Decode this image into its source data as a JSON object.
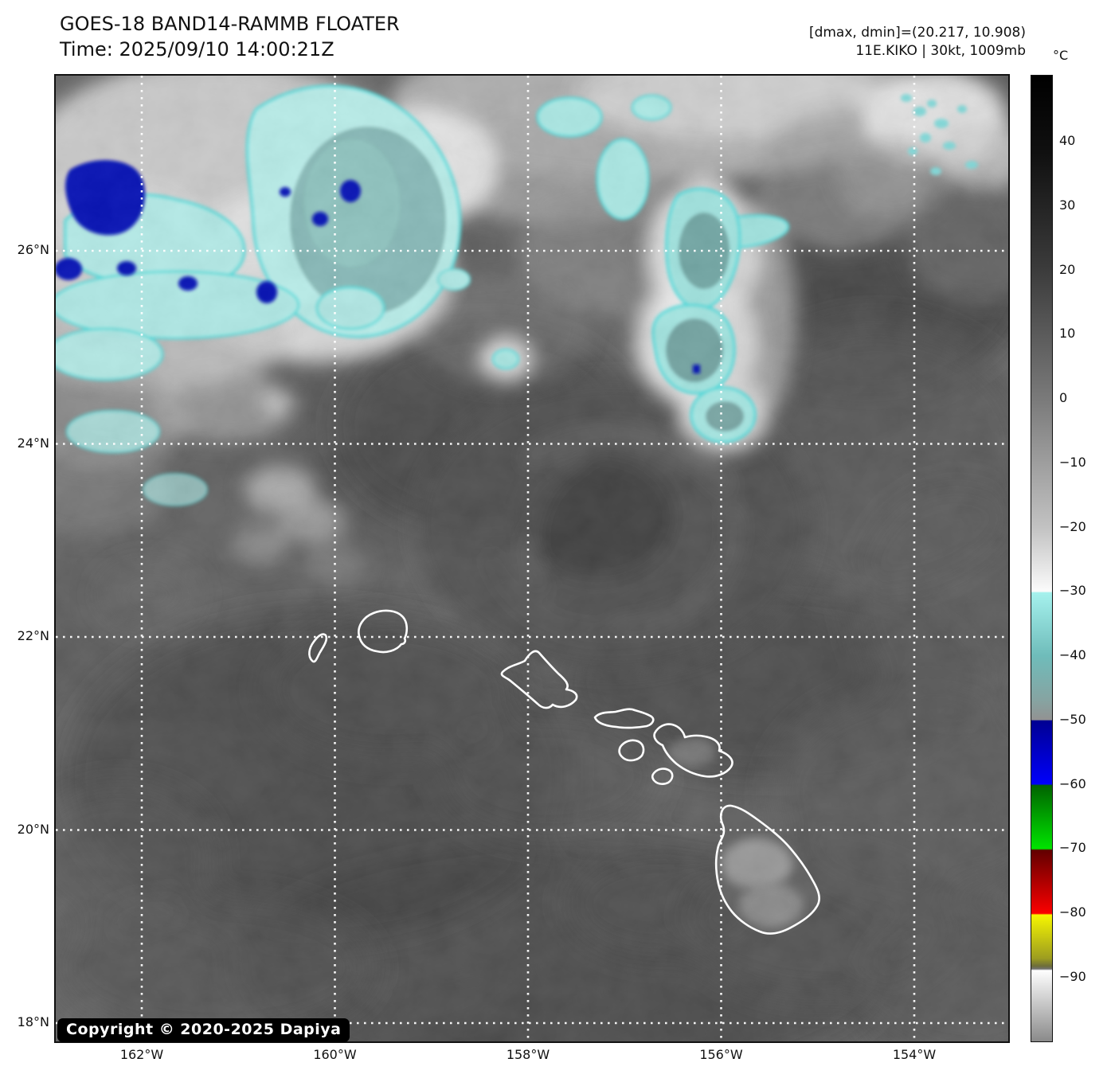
{
  "header": {
    "title": "GOES-18 BAND14-RAMMB FLOATER",
    "time_line": "Time: 2025/09/10 14:00:21Z"
  },
  "annotations": {
    "dmax_dmin": "[dmax, dmin]=(20.217, 10.908)",
    "storm_info": "11E.KIKO | 30kt, 1009mb"
  },
  "colorbar": {
    "unit": "°C",
    "tick_labels": [
      "40",
      "30",
      "20",
      "10",
      "0",
      "−10",
      "−20",
      "−30",
      "−40",
      "−50",
      "−60",
      "−70",
      "−80",
      "−90"
    ],
    "tick_values": [
      40,
      30,
      20,
      10,
      0,
      -10,
      -20,
      -30,
      -40,
      -50,
      -60,
      -70,
      -80,
      -90
    ],
    "segment_colors": {
      "warm_gray_top": "#000000",
      "gray_at_minus30": "#fbfbfb",
      "cyan_start": "#a5f1ed",
      "blue_dark": "#000092",
      "blue_bright": "#0000fb",
      "green_dark": "#006300",
      "green_bright": "#00e400",
      "red_dark": "#620000",
      "red_bright": "#fb0000",
      "yellow": "#f6f600",
      "bottom_white": "#fefefe",
      "bottom_gray": "#8a8a8a"
    }
  },
  "map": {
    "lat_labels": [
      "26°N",
      "24°N",
      "22°N",
      "20°N",
      "18°N"
    ],
    "lon_labels": [
      "162°W",
      "160°W",
      "158°W",
      "156°W",
      "154°W"
    ],
    "copyright": "Copyright © 2020-2025 Dapiya"
  }
}
